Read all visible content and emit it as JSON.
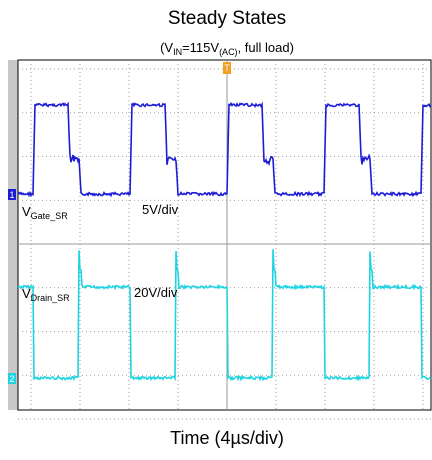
{
  "title": "Steady States",
  "subtitle": {
    "open": "(V",
    "sub1": "IN",
    "mid": "=115V",
    "sub2": "(AC)",
    "end": ", full load)"
  },
  "channel1": {
    "label": "V",
    "label_sub": "Gate_SR",
    "scale": "5V/div",
    "marker": "1"
  },
  "channel2": {
    "label": "V",
    "label_sub": "Drain_SR",
    "scale": "20V/div",
    "marker": "2"
  },
  "trigger_marker": "T",
  "x_label": "Time (4µs/div)"
}
